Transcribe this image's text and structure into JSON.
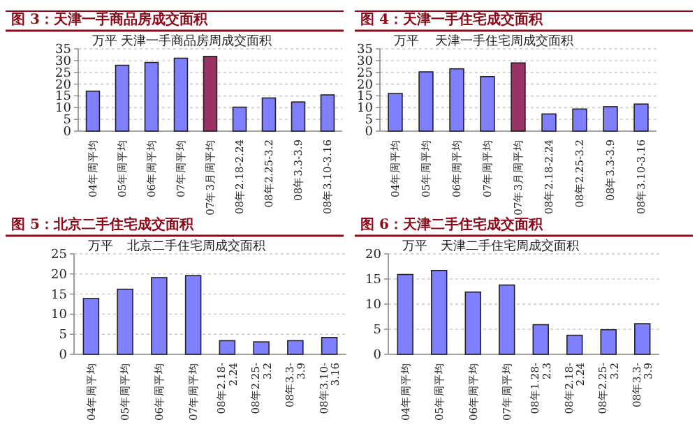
{
  "chart_data": [
    {
      "type": "bar",
      "title": "图 3：天津一手商品房成交面积",
      "subtitle": "天津一手商品房周成交面积",
      "ylabel": "万平",
      "categories": [
        "04年周平均",
        "05年周平均",
        "06年周平均",
        "07年周平均",
        "07年3月周平均",
        "08年2.18-2.24",
        "08年2.25-3.2",
        "08年3.3-3.9",
        "08年3.10-3.16"
      ],
      "values": [
        17,
        28,
        29.2,
        31,
        31.8,
        10.2,
        14.1,
        12.4,
        15.4
      ],
      "colors": [
        "#8080ff",
        "#8080ff",
        "#8080ff",
        "#8080ff",
        "#993366",
        "#8080ff",
        "#8080ff",
        "#8080ff",
        "#8080ff"
      ],
      "ylim": [
        0,
        35
      ],
      "yticks": [
        0,
        5,
        10,
        15,
        20,
        25,
        30,
        35
      ],
      "grid": "y"
    },
    {
      "type": "bar",
      "title": "图 4：天津一手住宅成交面积",
      "subtitle": "天津一手住宅周成交面积",
      "ylabel": "万平",
      "categories": [
        "04年周平均",
        "05年周平均",
        "06年周平均",
        "07年周平均",
        "07年3月周平均",
        "08年2.18-2.24",
        "08年2.25-3.2",
        "08年3.3-3.9",
        "08年3.10-3.16"
      ],
      "values": [
        16,
        25.2,
        26.5,
        23.2,
        29,
        7.3,
        9.4,
        10.4,
        11.5
      ],
      "colors": [
        "#8080ff",
        "#8080ff",
        "#8080ff",
        "#8080ff",
        "#993366",
        "#8080ff",
        "#8080ff",
        "#8080ff",
        "#8080ff"
      ],
      "ylim": [
        0,
        35
      ],
      "yticks": [
        0,
        5,
        10,
        15,
        20,
        25,
        30,
        35
      ],
      "grid": "y"
    },
    {
      "type": "bar",
      "title": "图 5：北京二手住宅成交面积",
      "subtitle": "北京二手住宅周成交面积",
      "ylabel": "万平",
      "categories": [
        "04年周平均",
        "05年周平均",
        "06年周平均",
        "07年周平均",
        "08年2.18-\n2.24",
        "08年2.25-\n3.2",
        "08年3.3-\n3.9",
        "08年3.10-\n3.16"
      ],
      "values": [
        13.9,
        16.2,
        19.1,
        19.6,
        3.4,
        3.1,
        3.4,
        4.2
      ],
      "color": "#8080ff",
      "ylim": [
        0,
        25
      ],
      "yticks": [
        0,
        5,
        10,
        15,
        20,
        25
      ],
      "grid": "y"
    },
    {
      "type": "bar",
      "title": "图 6：天津二手住宅成交面积",
      "subtitle": "天津二手住宅周成交面积",
      "ylabel": "万平",
      "categories": [
        "04年周平均",
        "05年周平均",
        "06年周平均",
        "07年周平均",
        "08年1.28-\n2.3",
        "08年2.18-\n2.24",
        "08年2.25-\n3.2",
        "08年3.3-\n3.9"
      ],
      "values": [
        15.9,
        16.7,
        12.4,
        13.8,
        5.9,
        3.8,
        4.9,
        6.1
      ],
      "color": "#8080ff",
      "ylim": [
        0,
        20
      ],
      "yticks": [
        0,
        5,
        10,
        15,
        20
      ],
      "grid": "y"
    }
  ]
}
